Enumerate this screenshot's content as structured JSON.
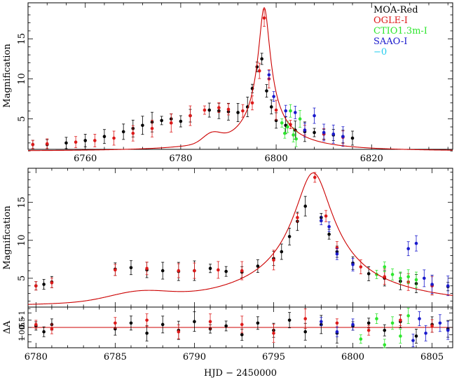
{
  "chart_data": [
    {
      "type": "scatter",
      "panel": "top",
      "ylabel": "Magnification",
      "xlim": [
        6748,
        6837
      ],
      "ylim": [
        1.2,
        19.5
      ],
      "x_ticks": [
        "6760",
        "6780",
        "6800",
        "6820"
      ],
      "y_ticks": [
        "5",
        "10",
        "15"
      ],
      "legend": [
        "MOA-Red",
        "OGLE-I",
        "CTIO1.3m-I",
        "SAAO-I",
        "−0"
      ],
      "legend_position": "top-right",
      "series": [
        {
          "name": "MOA-Red",
          "color": "#000000",
          "x": [
            6749,
            6752,
            6756,
            6760,
            6764,
            6768,
            6770,
            6772,
            6774,
            6776,
            6778,
            6780,
            6782,
            6786,
            6788,
            6790,
            6792,
            6794,
            6795,
            6796,
            6797,
            6798,
            6799,
            6800,
            6802,
            6804,
            6806,
            6808,
            6810,
            6812,
            6814,
            6816
          ],
          "y": [
            1.8,
            1.8,
            2.0,
            2.3,
            2.8,
            3.4,
            3.8,
            4.2,
            4.6,
            4.8,
            5.0,
            4.7,
            5.4,
            6.1,
            6.0,
            5.9,
            5.8,
            6.5,
            8.8,
            11.5,
            12.5,
            8.5,
            6.5,
            4.8,
            4.2,
            3.6,
            3.4,
            3.3,
            3.1,
            3.0,
            2.8,
            2.6
          ]
        },
        {
          "name": "OGLE-I",
          "color": "#dd1a1a",
          "x": [
            6749,
            6752,
            6758,
            6762,
            6766,
            6770,
            6774,
            6778,
            6782,
            6785,
            6788,
            6790,
            6793,
            6795,
            6796.5,
            6797.5,
            6798.5,
            6800,
            6803,
            6806,
            6810,
            6814
          ],
          "y": [
            1.8,
            1.9,
            2.1,
            2.3,
            2.6,
            3.2,
            3.8,
            4.5,
            5.4,
            6.1,
            6.4,
            6.2,
            6.0,
            7.0,
            11.0,
            17.6,
            10.0,
            6.1,
            4.3,
            3.6,
            3.1,
            2.7
          ]
        },
        {
          "name": "CTIO1.3m-I",
          "color": "#2ee62e",
          "x": [
            6801.2,
            6801.8,
            6802.4,
            6803,
            6803.6,
            6804.2,
            6805
          ],
          "y": [
            4.5,
            3.2,
            4.0,
            6.0,
            3.0,
            2.5,
            5.0
          ]
        },
        {
          "name": "SAAO-I",
          "color": "#1a1acc",
          "x": [
            6798.5,
            6799.5,
            6802,
            6804,
            6806,
            6808,
            6810,
            6812,
            6814
          ],
          "y": [
            10.5,
            7.8,
            6.0,
            5.8,
            3.6,
            5.4,
            3.3,
            3.1,
            2.8
          ]
        }
      ],
      "model": {
        "t0": 6797.5,
        "umin": 0.053,
        "tE": 23,
        "anomaly_center": 6786.5,
        "anomaly_width": 2.6,
        "anomaly_amplitude": 1.1
      }
    },
    {
      "type": "scatter",
      "panel": "middle",
      "ylabel": "Magnification",
      "xlim": [
        6779.5,
        6806.3
      ],
      "ylim": [
        1.2,
        19.5
      ],
      "y_ticks": [
        "5",
        "10",
        "15"
      ],
      "series": [
        {
          "name": "MOA-Red",
          "color": "#000000",
          "x": [
            6780,
            6780.5,
            6781,
            6785,
            6786,
            6787,
            6788,
            6789,
            6790,
            6791,
            6792,
            6793,
            6794,
            6795,
            6795.5,
            6796,
            6796.5,
            6797,
            6798,
            6798.5,
            6799,
            6800,
            6801,
            6802,
            6803,
            6804,
            6805,
            6806
          ],
          "y": [
            4.0,
            4.2,
            4.5,
            6.2,
            6.4,
            6.1,
            6.0,
            5.9,
            6.0,
            6.3,
            5.9,
            5.8,
            6.6,
            7.6,
            8.5,
            10.5,
            12.5,
            14.5,
            13.0,
            10.8,
            8.5,
            7.0,
            5.6,
            5.0,
            4.6,
            4.3,
            4.1,
            3.9
          ]
        },
        {
          "name": "OGLE-I",
          "color": "#dd1a1a",
          "x": [
            6780,
            6781,
            6785,
            6787,
            6789,
            6790,
            6791.5,
            6793,
            6795,
            6796.5,
            6797.6,
            6798.3,
            6799,
            6800.5,
            6802,
            6803.5,
            6805
          ],
          "y": [
            4.0,
            4.4,
            6.1,
            6.3,
            6.0,
            6.0,
            6.1,
            6.0,
            7.4,
            13.0,
            18.3,
            13.2,
            9.0,
            6.5,
            5.2,
            4.5,
            4.0
          ]
        },
        {
          "name": "CTIO1.3m-I",
          "color": "#2ee62e",
          "x": [
            6801.5,
            6802,
            6802.5,
            6803,
            6803.5,
            6804
          ],
          "y": [
            5.5,
            6.5,
            5.5,
            5.0,
            5.2,
            4.8
          ]
        },
        {
          "name": "SAAO-I",
          "color": "#1a1acc",
          "x": [
            6798,
            6798.5,
            6799,
            6800,
            6803.5,
            6804,
            6804.5,
            6805,
            6806
          ],
          "y": [
            12.6,
            11.8,
            8.2,
            6.8,
            8.9,
            9.6,
            5.0,
            4.2,
            4.0
          ]
        }
      ]
    },
    {
      "type": "scatter",
      "panel": "residual",
      "ylabel": "ΔA",
      "xlabel": "HJD − 2450000",
      "xlim": [
        6779.5,
        6806.3
      ],
      "ylim": [
        -1.4,
        1.4
      ],
      "x_ticks": [
        "6780",
        "6785",
        "6790",
        "6795",
        "6800",
        "6805"
      ],
      "y_ticks": [
        "−1",
        "0.5",
        "0",
        "−0.5",
        "1"
      ],
      "series": [
        {
          "name": "MOA-Red",
          "color": "#000000",
          "x": [
            6780,
            6780.5,
            6781,
            6785,
            6786,
            6787,
            6788,
            6789,
            6790,
            6791,
            6792,
            6793,
            6794,
            6795,
            6796,
            6797,
            6798,
            6799,
            6800,
            6801,
            6802,
            6803,
            6804,
            6805,
            6806
          ],
          "y": [
            0.1,
            -0.3,
            0.2,
            -0.1,
            0.3,
            -0.4,
            0.2,
            -0.2,
            0.4,
            -0.1,
            0.1,
            -0.5,
            0.3,
            -0.2,
            0.5,
            -0.3,
            0.2,
            -0.4,
            0.1,
            0.3,
            -0.2,
            0.4,
            -0.6,
            0.2,
            -0.1
          ]
        },
        {
          "name": "OGLE-I",
          "color": "#dd1a1a",
          "x": [
            6780,
            6781,
            6785,
            6787,
            6789,
            6791,
            6793,
            6795,
            6797,
            6799,
            6801,
            6803,
            6805
          ],
          "y": [
            0.2,
            -0.1,
            0.3,
            0.5,
            -0.3,
            0.4,
            0.2,
            -0.4,
            0.6,
            0.3,
            -0.2,
            0.5,
            0.1
          ]
        },
        {
          "name": "CTIO1.3m-I",
          "color": "#2ee62e",
          "x": [
            6800.5,
            6801.5,
            6802,
            6802.5,
            6803,
            6803.5
          ],
          "y": [
            -0.8,
            0.6,
            -1.2,
            0.3,
            -0.6,
            0.8
          ]
        },
        {
          "name": "SAAO-I",
          "color": "#1a1acc",
          "x": [
            6798,
            6799,
            6800,
            6803.8,
            6804.2,
            6804.6,
            6805.5,
            6806
          ],
          "y": [
            0.4,
            -0.3,
            0.2,
            -0.9,
            0.6,
            -0.4,
            0.3,
            -0.2
          ]
        }
      ]
    }
  ]
}
